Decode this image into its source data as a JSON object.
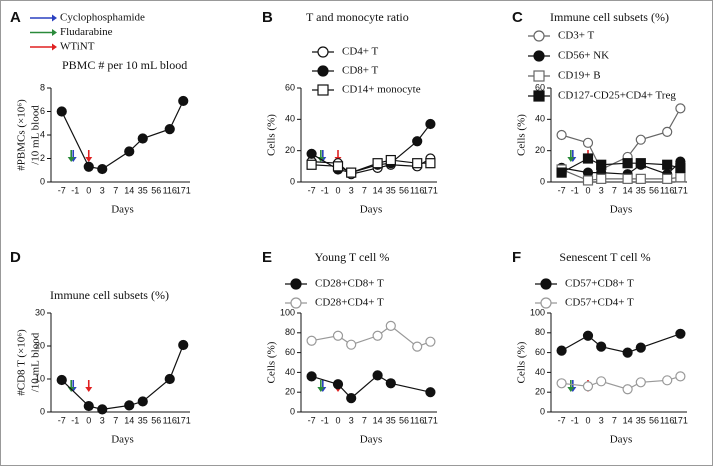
{
  "chart_data": [
    {
      "type": "line",
      "letter": "A",
      "title": "PBMC # per 10 mL blood",
      "ylabel": [
        "#PBMCs (×10⁶)",
        "/10 mL blood"
      ],
      "xlabel": "Days",
      "treatments": [
        {
          "name": "Cyclophosphamide",
          "color": "#2a40c0"
        },
        {
          "name": "Fludarabine",
          "color": "#2a8a3a"
        },
        {
          "name": "WTiNT",
          "color": "#e02020"
        }
      ],
      "categories": [
        "-7",
        "-1",
        "0",
        "3",
        "7",
        "14",
        "35",
        "56",
        "116",
        "171"
      ],
      "ylim": [
        0,
        8
      ],
      "yticks": [
        0,
        2,
        4,
        6,
        8
      ],
      "series": [
        {
          "x": [
            "-7",
            "0",
            "3",
            "14",
            "35",
            "116",
            "171"
          ],
          "values": [
            6.0,
            1.3,
            1.1,
            2.6,
            3.7,
            4.5,
            6.9
          ],
          "marker": "circle",
          "filled": true,
          "color": "#111"
        }
      ]
    },
    {
      "type": "line",
      "letter": "B",
      "title": "T and monocyte ratio",
      "ylabel": [
        "Cells (%)"
      ],
      "xlabel": "Days",
      "categories": [
        "-7",
        "-1",
        "0",
        "3",
        "7",
        "14",
        "35",
        "56",
        "116",
        "171"
      ],
      "ylim": [
        0,
        60
      ],
      "yticks": [
        0,
        20,
        40,
        60
      ],
      "series": [
        {
          "name": "CD4+ T",
          "x": [
            "-7",
            "0",
            "3",
            "14",
            "35",
            "116",
            "171"
          ],
          "values": [
            13,
            12,
            5,
            9,
            11,
            10,
            15
          ],
          "marker": "circle",
          "filled": false,
          "color": "#111"
        },
        {
          "name": "CD8+ T",
          "x": [
            "-7",
            "0",
            "3",
            "14",
            "35",
            "116",
            "171"
          ],
          "values": [
            18,
            8,
            6,
            11,
            12,
            26,
            37
          ],
          "marker": "circle",
          "filled": true,
          "color": "#111"
        },
        {
          "name": "CD14+ monocyte",
          "x": [
            "-7",
            "0",
            "3",
            "14",
            "35",
            "116",
            "171"
          ],
          "values": [
            11,
            10,
            6,
            12,
            14,
            12,
            12
          ],
          "marker": "square",
          "filled": false,
          "color": "#111"
        }
      ]
    },
    {
      "type": "line",
      "letter": "C",
      "title": "Immune cell subsets (%)",
      "ylabel": [
        "Cells (%)"
      ],
      "xlabel": "Days",
      "categories": [
        "-7",
        "-1",
        "0",
        "3",
        "7",
        "14",
        "35",
        "56",
        "116",
        "171"
      ],
      "ylim": [
        0,
        60
      ],
      "yticks": [
        0,
        20,
        40,
        60
      ],
      "series": [
        {
          "name": "CD3+ T",
          "x": [
            "-7",
            "0",
            "3",
            "14",
            "35",
            "116",
            "171"
          ],
          "values": [
            30,
            25,
            8,
            16,
            27,
            32,
            47
          ],
          "marker": "circle",
          "filled": false,
          "color": "#666"
        },
        {
          "name": "CD56+ NK",
          "x": [
            "-7",
            "0",
            "3",
            "14",
            "35",
            "116",
            "171"
          ],
          "values": [
            9,
            6,
            6,
            5,
            11,
            5,
            13
          ],
          "marker": "circle",
          "filled": true,
          "color": "#111"
        },
        {
          "name": "CD19+ B",
          "x": [
            "-7",
            "0",
            "3",
            "14",
            "35",
            "116",
            "171"
          ],
          "values": [
            8,
            1,
            2,
            2,
            2,
            2,
            3
          ],
          "marker": "square",
          "filled": false,
          "color": "#666"
        },
        {
          "name": "CD127-CD25+CD4+ Treg",
          "x": [
            "-7",
            "0",
            "3",
            "14",
            "35",
            "116",
            "171"
          ],
          "values": [
            6,
            15,
            11,
            12,
            12,
            11,
            9
          ],
          "marker": "square",
          "filled": true,
          "color": "#111"
        }
      ]
    },
    {
      "type": "line",
      "letter": "D",
      "title": "Immune cell subsets (%)",
      "ylabel": [
        "#CD8 T (×10⁶)",
        "/10 mL blood"
      ],
      "xlabel": "Days",
      "categories": [
        "-7",
        "-1",
        "0",
        "3",
        "7",
        "14",
        "35",
        "56",
        "116",
        "171"
      ],
      "ylim": [
        0,
        30
      ],
      "yticks": [
        0,
        10,
        20,
        30
      ],
      "series": [
        {
          "x": [
            "-7",
            "0",
            "3",
            "14",
            "35",
            "116",
            "171"
          ],
          "values": [
            9.7,
            1.8,
            0.8,
            2,
            3.2,
            10,
            20.3
          ],
          "marker": "circle",
          "filled": true,
          "color": "#111"
        }
      ]
    },
    {
      "type": "line",
      "letter": "E",
      "title": "Young T cell %",
      "ylabel": [
        "Cells (%)"
      ],
      "xlabel": "Days",
      "categories": [
        "-7",
        "-1",
        "0",
        "3",
        "7",
        "14",
        "35",
        "56",
        "116",
        "171"
      ],
      "ylim": [
        0,
        100
      ],
      "yticks": [
        0,
        20,
        40,
        60,
        80,
        100
      ],
      "series": [
        {
          "name": "CD28+CD8+ T",
          "x": [
            "-7",
            "0",
            "3",
            "14",
            "35",
            "171"
          ],
          "values": [
            36,
            28,
            14,
            37,
            29,
            20
          ],
          "marker": "circle",
          "filled": true,
          "color": "#111"
        },
        {
          "name": "CD28+CD4+ T",
          "x": [
            "-7",
            "0",
            "3",
            "14",
            "35",
            "116",
            "171"
          ],
          "values": [
            72,
            77,
            68,
            77,
            87,
            66,
            71
          ],
          "marker": "circle",
          "filled": false,
          "color": "#999"
        }
      ]
    },
    {
      "type": "line",
      "letter": "F",
      "title": "Senescent T cell %",
      "ylabel": [
        "Cells (%)"
      ],
      "xlabel": "Days",
      "categories": [
        "-7",
        "-1",
        "0",
        "3",
        "7",
        "14",
        "35",
        "56",
        "116",
        "171"
      ],
      "ylim": [
        0,
        100
      ],
      "yticks": [
        0,
        20,
        40,
        60,
        80,
        100
      ],
      "series": [
        {
          "name": "CD57+CD8+ T",
          "x": [
            "-7",
            "0",
            "3",
            "14",
            "35",
            "171"
          ],
          "values": [
            62,
            77,
            66,
            60,
            65,
            79
          ],
          "marker": "circle",
          "filled": true,
          "color": "#111"
        },
        {
          "name": "CD57+CD4+ T",
          "x": [
            "-7",
            "0",
            "3",
            "14",
            "35",
            "116",
            "171"
          ],
          "values": [
            29,
            26,
            31,
            23,
            30,
            32,
            36
          ],
          "marker": "circle",
          "filled": false,
          "color": "#999"
        }
      ]
    }
  ]
}
